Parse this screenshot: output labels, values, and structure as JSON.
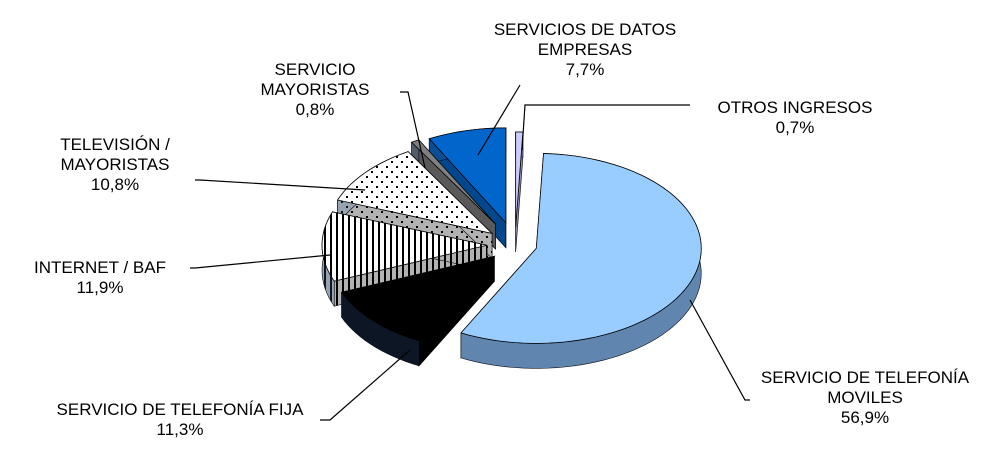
{
  "chart_data": {
    "type": "pie",
    "categories": [
      "OTROS INGRESOS",
      "SERVICIO DE TELEFONÍA MOVILES",
      "SERVICIO DE TELEFONÍA FIJA",
      "INTERNET / BAF",
      "TELEVISIÓN / MAYORISTAS",
      "SERVICIO MAYORISTAS",
      "SERVICIOS DE DATOS EMPRESAS"
    ],
    "values": [
      0.7,
      56.9,
      11.3,
      11.9,
      10.8,
      0.8,
      7.7
    ],
    "value_labels": [
      "0,7%",
      "56,9%",
      "11,3%",
      "11,9%",
      "10,8%",
      "0,8%",
      "7,7%"
    ],
    "colors": [
      "#ccccff",
      "#99ccff",
      "#000000",
      "#ffffff",
      "#ffffff",
      "#808080",
      "#0066cc"
    ]
  }
}
